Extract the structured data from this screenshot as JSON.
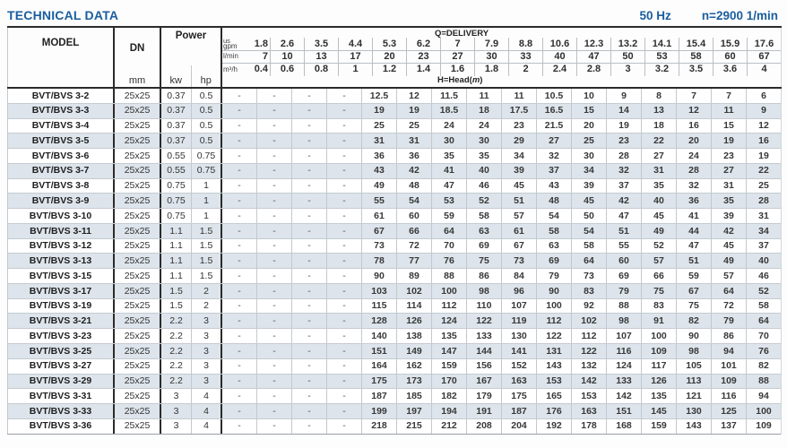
{
  "page": {
    "title": "TECHNICAL DATA",
    "frequency": "50 Hz",
    "speed": "n=2900 1/min",
    "accent_color": "#1a5e9e"
  },
  "table": {
    "headers": {
      "model": "MODEL",
      "dn": "DN",
      "dn_unit": "mm",
      "power": "Power",
      "power_unit_kw": "kw",
      "power_unit_hp": "hp",
      "delivery_label": "Q=DELIVERY",
      "head_label_prefix": "H=Head(",
      "head_label_italic": "m",
      "head_label_suffix": ")"
    },
    "flow_rows": [
      {
        "unit_top": "us",
        "unit": "gpm",
        "values": [
          "1.8",
          "2.6",
          "3.5",
          "4.4",
          "5.3",
          "6.2",
          "7",
          "7.9",
          "8.8",
          "10.6",
          "12.3",
          "13.2",
          "14.1",
          "15.4",
          "15.9",
          "17.6"
        ]
      },
      {
        "unit_top": "",
        "unit": "l/min",
        "values": [
          "7",
          "10",
          "13",
          "17",
          "20",
          "23",
          "27",
          "30",
          "33",
          "40",
          "47",
          "50",
          "53",
          "58",
          "60",
          "67"
        ]
      },
      {
        "unit_top": "",
        "unit": "m³/h",
        "values": [
          "0.4",
          "0.6",
          "0.8",
          "1",
          "1.2",
          "1.4",
          "1.6",
          "1.8",
          "2",
          "2.4",
          "2.8",
          "3",
          "3.2",
          "3.5",
          "3.6",
          "4"
        ]
      }
    ],
    "rows": [
      {
        "model": "BVT/BVS 3-2",
        "dn": "25x25",
        "kw": "0.37",
        "hp": "0.5",
        "head": [
          "-",
          "-",
          "-",
          "-",
          "12.5",
          "12",
          "11.5",
          "11",
          "11",
          "10.5",
          "10",
          "9",
          "8",
          "7",
          "7",
          "6"
        ]
      },
      {
        "model": "BVT/BVS 3-3",
        "dn": "25x25",
        "kw": "0.37",
        "hp": "0.5",
        "head": [
          "-",
          "-",
          "-",
          "-",
          "19",
          "19",
          "18.5",
          "18",
          "17.5",
          "16.5",
          "15",
          "14",
          "13",
          "12",
          "11",
          "9"
        ]
      },
      {
        "model": "BVT/BVS 3-4",
        "dn": "25x25",
        "kw": "0.37",
        "hp": "0.5",
        "head": [
          "-",
          "-",
          "-",
          "-",
          "25",
          "25",
          "24",
          "24",
          "23",
          "21.5",
          "20",
          "19",
          "18",
          "16",
          "15",
          "12"
        ]
      },
      {
        "model": "BVT/BVS 3-5",
        "dn": "25x25",
        "kw": "0.37",
        "hp": "0.5",
        "head": [
          "-",
          "-",
          "-",
          "-",
          "31",
          "31",
          "30",
          "30",
          "29",
          "27",
          "25",
          "23",
          "22",
          "20",
          "19",
          "16"
        ]
      },
      {
        "model": "BVT/BVS 3-6",
        "dn": "25x25",
        "kw": "0.55",
        "hp": "0.75",
        "head": [
          "-",
          "-",
          "-",
          "-",
          "36",
          "36",
          "35",
          "35",
          "34",
          "32",
          "30",
          "28",
          "27",
          "24",
          "23",
          "19"
        ]
      },
      {
        "model": "BVT/BVS 3-7",
        "dn": "25x25",
        "kw": "0.55",
        "hp": "0.75",
        "head": [
          "-",
          "-",
          "-",
          "-",
          "43",
          "42",
          "41",
          "40",
          "39",
          "37",
          "34",
          "32",
          "31",
          "28",
          "27",
          "22"
        ]
      },
      {
        "model": "BVT/BVS 3-8",
        "dn": "25x25",
        "kw": "0.75",
        "hp": "1",
        "head": [
          "-",
          "-",
          "-",
          "-",
          "49",
          "48",
          "47",
          "46",
          "45",
          "43",
          "39",
          "37",
          "35",
          "32",
          "31",
          "25"
        ]
      },
      {
        "model": "BVT/BVS 3-9",
        "dn": "25x25",
        "kw": "0.75",
        "hp": "1",
        "head": [
          "-",
          "-",
          "-",
          "-",
          "55",
          "54",
          "53",
          "52",
          "51",
          "48",
          "45",
          "42",
          "40",
          "36",
          "35",
          "28"
        ]
      },
      {
        "model": "BVT/BVS 3-10",
        "dn": "25x25",
        "kw": "0.75",
        "hp": "1",
        "head": [
          "-",
          "-",
          "-",
          "-",
          "61",
          "60",
          "59",
          "58",
          "57",
          "54",
          "50",
          "47",
          "45",
          "41",
          "39",
          "31"
        ]
      },
      {
        "model": "BVT/BVS 3-11",
        "dn": "25x25",
        "kw": "1.1",
        "hp": "1.5",
        "head": [
          "-",
          "-",
          "-",
          "-",
          "67",
          "66",
          "64",
          "63",
          "61",
          "58",
          "54",
          "51",
          "49",
          "44",
          "42",
          "34"
        ]
      },
      {
        "model": "BVT/BVS 3-12",
        "dn": "25x25",
        "kw": "1.1",
        "hp": "1.5",
        "head": [
          "-",
          "-",
          "-",
          "-",
          "73",
          "72",
          "70",
          "69",
          "67",
          "63",
          "58",
          "55",
          "52",
          "47",
          "45",
          "37"
        ]
      },
      {
        "model": "BVT/BVS 3-13",
        "dn": "25x25",
        "kw": "1.1",
        "hp": "1.5",
        "head": [
          "-",
          "-",
          "-",
          "-",
          "78",
          "77",
          "76",
          "75",
          "73",
          "69",
          "64",
          "60",
          "57",
          "51",
          "49",
          "40"
        ]
      },
      {
        "model": "BVT/BVS 3-15",
        "dn": "25x25",
        "kw": "1.1",
        "hp": "1.5",
        "head": [
          "-",
          "-",
          "-",
          "-",
          "90",
          "89",
          "88",
          "86",
          "84",
          "79",
          "73",
          "69",
          "66",
          "59",
          "57",
          "46"
        ]
      },
      {
        "model": "BVT/BVS 3-17",
        "dn": "25x25",
        "kw": "1.5",
        "hp": "2",
        "head": [
          "-",
          "-",
          "-",
          "-",
          "103",
          "102",
          "100",
          "98",
          "96",
          "90",
          "83",
          "79",
          "75",
          "67",
          "64",
          "52"
        ]
      },
      {
        "model": "BVT/BVS 3-19",
        "dn": "25x25",
        "kw": "1.5",
        "hp": "2",
        "head": [
          "-",
          "-",
          "-",
          "-",
          "115",
          "114",
          "112",
          "110",
          "107",
          "100",
          "92",
          "88",
          "83",
          "75",
          "72",
          "58"
        ]
      },
      {
        "model": "BVT/BVS 3-21",
        "dn": "25x25",
        "kw": "2.2",
        "hp": "3",
        "head": [
          "-",
          "-",
          "-",
          "-",
          "128",
          "126",
          "124",
          "122",
          "119",
          "112",
          "102",
          "98",
          "91",
          "82",
          "79",
          "64"
        ]
      },
      {
        "model": "BVT/BVS 3-23",
        "dn": "25x25",
        "kw": "2.2",
        "hp": "3",
        "head": [
          "-",
          "-",
          "-",
          "-",
          "140",
          "138",
          "135",
          "133",
          "130",
          "122",
          "112",
          "107",
          "100",
          "90",
          "86",
          "70"
        ]
      },
      {
        "model": "BVT/BVS 3-25",
        "dn": "25x25",
        "kw": "2.2",
        "hp": "3",
        "head": [
          "-",
          "-",
          "-",
          "-",
          "151",
          "149",
          "147",
          "144",
          "141",
          "131",
          "122",
          "116",
          "109",
          "98",
          "94",
          "76"
        ]
      },
      {
        "model": "BVT/BVS 3-27",
        "dn": "25x25",
        "kw": "2.2",
        "hp": "3",
        "head": [
          "-",
          "-",
          "-",
          "-",
          "164",
          "162",
          "159",
          "156",
          "152",
          "143",
          "132",
          "124",
          "117",
          "105",
          "101",
          "82"
        ]
      },
      {
        "model": "BVT/BVS 3-29",
        "dn": "25x25",
        "kw": "2.2",
        "hp": "3",
        "head": [
          "-",
          "-",
          "-",
          "-",
          "175",
          "173",
          "170",
          "167",
          "163",
          "153",
          "142",
          "133",
          "126",
          "113",
          "109",
          "88"
        ]
      },
      {
        "model": "BVT/BVS 3-31",
        "dn": "25x25",
        "kw": "3",
        "hp": "4",
        "head": [
          "-",
          "-",
          "-",
          "-",
          "187",
          "185",
          "182",
          "179",
          "175",
          "165",
          "153",
          "142",
          "135",
          "121",
          "116",
          "94"
        ]
      },
      {
        "model": "BVT/BVS 3-33",
        "dn": "25x25",
        "kw": "3",
        "hp": "4",
        "head": [
          "-",
          "-",
          "-",
          "-",
          "199",
          "197",
          "194",
          "191",
          "187",
          "176",
          "163",
          "151",
          "145",
          "130",
          "125",
          "100"
        ]
      },
      {
        "model": "BVT/BVS 3-36",
        "dn": "25x25",
        "kw": "3",
        "hp": "4",
        "head": [
          "-",
          "-",
          "-",
          "-",
          "218",
          "215",
          "212",
          "208",
          "204",
          "192",
          "178",
          "168",
          "159",
          "143",
          "137",
          "109"
        ]
      }
    ]
  }
}
